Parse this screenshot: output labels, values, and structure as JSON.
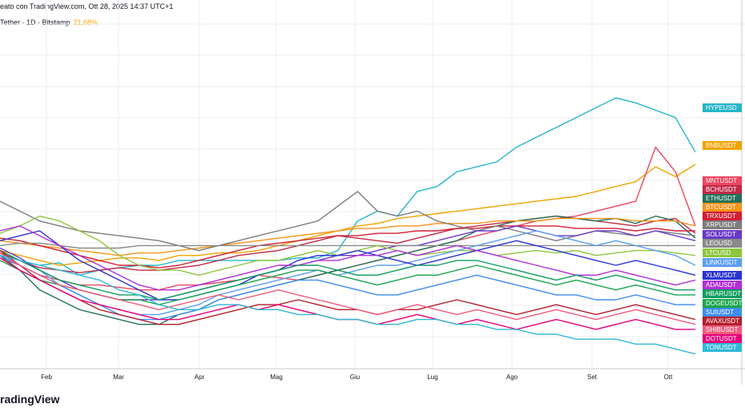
{
  "header": {
    "line1": "eato con TradingView.com, Ott 28, 2025 14:37 UTC+1",
    "line2_prefix": "Tether · 1D · Bitstamp",
    "line2_pct": "21,68%"
  },
  "brand": {
    "name": "radingView"
  },
  "chart_data": {
    "type": "line",
    "x_axis": {
      "labels": [
        "Feb",
        "Mar",
        "Apr",
        "Mag",
        "Giu",
        "Lug",
        "Ago",
        "Set",
        "Ott"
      ]
    },
    "series": [
      {
        "name": "HYPEUSD",
        "color": "#26b5c9",
        "values": [
          -4,
          -6,
          -8,
          -7,
          -12,
          -10,
          -9,
          -8,
          -8,
          -6,
          -6,
          -6,
          -6,
          -6,
          -6,
          -5,
          -5,
          -2,
          10,
          14,
          12,
          22,
          24,
          30,
          32,
          34,
          40,
          44,
          48,
          52,
          56,
          60,
          58,
          55,
          52,
          38
        ]
      },
      {
        "name": "BNBUSDT",
        "color": "#f0a400",
        "values": [
          -2,
          -4,
          -6,
          -8,
          -7,
          -6,
          -5,
          -5,
          -6,
          -4,
          -4,
          -3,
          -3,
          -2,
          0,
          2,
          4,
          6,
          8,
          9,
          11,
          12,
          13,
          14,
          15,
          16,
          17,
          18,
          19,
          20,
          22,
          24,
          26,
          32,
          28,
          33
        ]
      },
      {
        "name": "MNTUSDT",
        "color": "#e94760",
        "values": [
          -5,
          -8,
          -12,
          -14,
          -16,
          -16,
          -17,
          -18,
          -18,
          -16,
          -16,
          -15,
          -14,
          -12,
          -13,
          -14,
          -12,
          -10,
          -8,
          -6,
          -4,
          -2,
          0,
          2,
          4,
          6,
          8,
          10,
          11,
          12,
          14,
          16,
          18,
          40,
          30,
          8
        ]
      },
      {
        "name": "BCHUSDT",
        "color": "#c22a47",
        "values": [
          -3,
          -6,
          -9,
          -10,
          -11,
          -10,
          -9,
          -10,
          -10,
          -9,
          -8,
          -6,
          -4,
          -3,
          -2,
          0,
          2,
          4,
          3,
          2,
          1,
          3,
          5,
          7,
          8,
          9,
          10,
          11,
          12,
          11,
          10,
          9,
          8,
          10,
          11,
          5
        ]
      },
      {
        "name": "ETHUSDT",
        "color": "#24705a",
        "values": [
          -4,
          -10,
          -18,
          -22,
          -26,
          -28,
          -30,
          -32,
          -32,
          -28,
          -26,
          -22,
          -20,
          -18,
          -16,
          -14,
          -12,
          -10,
          -8,
          -6,
          -4,
          -2,
          0,
          2,
          6,
          8,
          10,
          11,
          12,
          11,
          10,
          11,
          9,
          12,
          10,
          3
        ]
      },
      {
        "name": "BTCUSDT",
        "color": "#f7931a",
        "values": [
          2,
          1,
          0,
          -1,
          -2,
          -3,
          -4,
          -3,
          -3,
          -2,
          -1,
          0,
          1,
          2,
          3,
          4,
          5,
          6,
          7,
          7,
          8,
          8,
          9,
          9,
          9,
          10,
          10,
          10,
          11,
          11,
          11,
          11,
          10,
          10,
          10,
          8
        ]
      },
      {
        "name": "TRXUSDT",
        "color": "#d21f33",
        "values": [
          3,
          2,
          0,
          -2,
          -4,
          -6,
          -8,
          -8,
          -9,
          -8,
          -6,
          -4,
          -2,
          0,
          1,
          2,
          3,
          4,
          4,
          5,
          5,
          6,
          6,
          7,
          7,
          8,
          8,
          8,
          8,
          7,
          7,
          7,
          6,
          7,
          6,
          6
        ]
      },
      {
        "name": "XRPUSDT",
        "color": "#7d7d7d",
        "values": [
          18,
          14,
          10,
          8,
          6,
          5,
          4,
          3,
          2,
          0,
          -2,
          0,
          2,
          4,
          6,
          8,
          10,
          16,
          22,
          14,
          12,
          14,
          10,
          8,
          6,
          8,
          6,
          4,
          2,
          4,
          6,
          5,
          4,
          6,
          5,
          4
        ]
      },
      {
        "name": "SOLUSDT",
        "color": "#6a38c7",
        "values": [
          -1,
          -5,
          -10,
          -14,
          -18,
          -20,
          -22,
          -22,
          -22,
          -20,
          -18,
          -16,
          -14,
          -12,
          -10,
          -8,
          -6,
          -4,
          -4,
          -2,
          0,
          0,
          2,
          4,
          6,
          6,
          8,
          6,
          4,
          4,
          6,
          6,
          4,
          6,
          4,
          2
        ]
      },
      {
        "name": "LEOUSD",
        "color": "#8a8a8a",
        "values": [
          0,
          1,
          1,
          0,
          -1,
          -1,
          -1,
          0,
          0,
          0,
          0,
          0,
          0,
          0,
          0,
          0,
          0,
          0,
          0,
          0,
          0,
          0,
          0,
          0,
          0,
          0,
          0,
          0,
          0,
          0,
          0,
          0,
          0,
          0,
          0,
          0
        ]
      },
      {
        "name": "LTCUSD",
        "color": "#8dc63f",
        "values": [
          5,
          8,
          12,
          10,
          6,
          2,
          -4,
          -8,
          -10,
          -10,
          -12,
          -10,
          -8,
          -6,
          -6,
          -4,
          -2,
          -4,
          -2,
          0,
          -2,
          -4,
          -3,
          -2,
          -2,
          -4,
          -3,
          -2,
          -3,
          -2,
          -4,
          -3,
          -2,
          -2,
          -3,
          -4
        ]
      },
      {
        "name": "LINKUSDT",
        "color": "#5b9ff2",
        "values": [
          -2,
          -6,
          -10,
          -16,
          -20,
          -24,
          -26,
          -28,
          -28,
          -26,
          -24,
          -20,
          -18,
          -16,
          -14,
          -12,
          -10,
          -12,
          -10,
          -8,
          -8,
          -6,
          -4,
          -2,
          0,
          2,
          4,
          6,
          4,
          2,
          0,
          2,
          0,
          -2,
          -4,
          -8
        ]
      },
      {
        "name": "XLMUSDT",
        "color": "#2a33d4",
        "values": [
          2,
          4,
          6,
          0,
          -6,
          -10,
          -14,
          -18,
          -22,
          -22,
          -20,
          -18,
          -16,
          -12,
          -10,
          -6,
          -4,
          -4,
          -2,
          -4,
          -6,
          -8,
          -6,
          -4,
          -2,
          0,
          2,
          0,
          -2,
          -4,
          -6,
          -8,
          -6,
          -8,
          -10,
          -12
        ]
      },
      {
        "name": "ADAUSDT",
        "color": "#b02fd6",
        "values": [
          6,
          8,
          4,
          0,
          -4,
          -8,
          -12,
          -16,
          -18,
          -18,
          -16,
          -14,
          -12,
          -10,
          -8,
          -8,
          -6,
          -6,
          -4,
          -4,
          -2,
          -4,
          -2,
          0,
          -2,
          -4,
          -6,
          -8,
          -10,
          -12,
          -12,
          -10,
          -12,
          -14,
          -16,
          -14
        ]
      },
      {
        "name": "HBARUSDT",
        "color": "#0f9e5f",
        "values": [
          -2,
          -6,
          -10,
          -14,
          -16,
          -18,
          -20,
          -20,
          -22,
          -20,
          -18,
          -16,
          -14,
          -12,
          -10,
          -8,
          -8,
          -10,
          -12,
          -12,
          -10,
          -8,
          -8,
          -6,
          -6,
          -8,
          -10,
          -12,
          -14,
          -12,
          -14,
          -12,
          -14,
          -16,
          -18,
          -18
        ]
      },
      {
        "name": "DOGEUSDT",
        "color": "#1aa64f",
        "values": [
          -6,
          -10,
          -14,
          -16,
          -18,
          -20,
          -22,
          -22,
          -24,
          -22,
          -20,
          -18,
          -16,
          -14,
          -12,
          -10,
          -10,
          -12,
          -14,
          -16,
          -14,
          -12,
          -12,
          -10,
          -8,
          -10,
          -12,
          -14,
          -16,
          -14,
          -16,
          -18,
          -16,
          -18,
          -20,
          -20
        ]
      },
      {
        "name": "SUIUSDT",
        "color": "#3d8ef0",
        "values": [
          -4,
          -8,
          -12,
          -16,
          -20,
          -24,
          -28,
          -30,
          -30,
          -28,
          -26,
          -22,
          -20,
          -18,
          -16,
          -14,
          -14,
          -16,
          -18,
          -20,
          -20,
          -18,
          -16,
          -14,
          -12,
          -14,
          -16,
          -18,
          -20,
          -20,
          -22,
          -22,
          -20,
          -22,
          -24,
          -24
        ]
      },
      {
        "name": "AVAXUSDT",
        "color": "#b3202d",
        "values": [
          -2,
          -8,
          -14,
          -18,
          -22,
          -26,
          -28,
          -30,
          -32,
          -32,
          -30,
          -28,
          -26,
          -24,
          -24,
          -22,
          -24,
          -26,
          -26,
          -28,
          -26,
          -26,
          -24,
          -22,
          -24,
          -26,
          -28,
          -26,
          -24,
          -26,
          -28,
          -26,
          -24,
          -26,
          -28,
          -30
        ]
      },
      {
        "name": "SHIBUSDT",
        "color": "#ee5c7e",
        "values": [
          -3,
          -8,
          -12,
          -16,
          -18,
          -20,
          -22,
          -24,
          -26,
          -24,
          -22,
          -20,
          -22,
          -20,
          -18,
          -20,
          -22,
          -24,
          -26,
          -28,
          -26,
          -24,
          -26,
          -28,
          -26,
          -28,
          -30,
          -28,
          -26,
          -28,
          -30,
          -28,
          -26,
          -28,
          -30,
          -32
        ]
      },
      {
        "name": "DOTUSDT",
        "color": "#e6007a",
        "values": [
          -5,
          -10,
          -14,
          -18,
          -22,
          -24,
          -26,
          -28,
          -30,
          -30,
          -28,
          -26,
          -24,
          -26,
          -24,
          -26,
          -28,
          -30,
          -30,
          -32,
          -30,
          -28,
          -30,
          -32,
          -30,
          -32,
          -34,
          -32,
          -30,
          -32,
          -34,
          -32,
          -30,
          -32,
          -34,
          -34
        ]
      },
      {
        "name": "TONUSDT",
        "color": "#31b8d6",
        "values": [
          -4,
          -6,
          -8,
          -10,
          -12,
          -14,
          -18,
          -20,
          -24,
          -26,
          -26,
          -24,
          -24,
          -26,
          -26,
          -28,
          -28,
          -30,
          -30,
          -32,
          -32,
          -30,
          -30,
          -32,
          -32,
          -34,
          -34,
          -36,
          -36,
          -38,
          -38,
          -38,
          -40,
          -40,
          -42,
          -44
        ]
      }
    ],
    "ylim": [
      -50,
      90
    ],
    "grid": true,
    "legend": "right price-scale tags"
  }
}
